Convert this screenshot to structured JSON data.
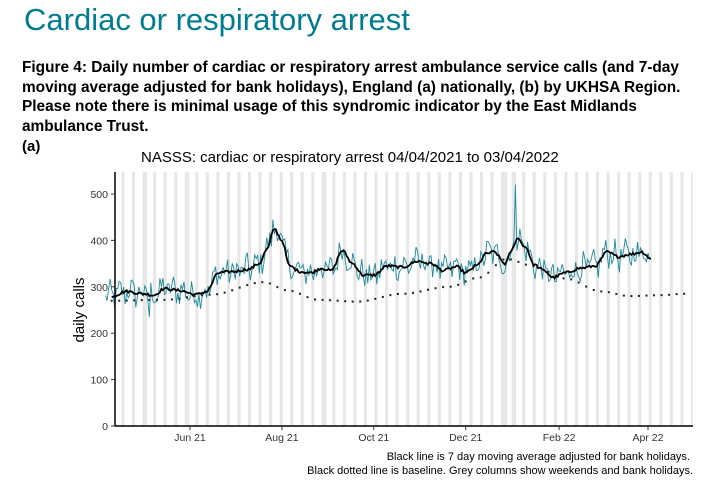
{
  "page": {
    "title": "Cardiac or respiratory arrest",
    "caption": "Figure 4: Daily number of cardiac or respiratory arrest ambulance service calls (and 7-day moving average adjusted for bank holidays), England (a) nationally, (b) by UKHSA Region. Please note there is minimal usage of this syndromic indicator by the East Midlands ambulance Trust.",
    "panel_label": "(a)"
  },
  "chart_data": {
    "type": "line",
    "title": "NASSS: cardiac or respiratory arrest 04/04/2021 to 03/04/2022",
    "xlabel": "",
    "ylabel": "daily calls",
    "ylim": [
      0,
      550
    ],
    "yticks": [
      0,
      100,
      200,
      300,
      400,
      500
    ],
    "xlim": [
      "2021-04-06",
      "2022-04-30"
    ],
    "xticks": [
      {
        "date": "2021-06-01",
        "label": "Jun 21"
      },
      {
        "date": "2021-08-01",
        "label": "Aug 21"
      },
      {
        "date": "2021-10-01",
        "label": "Oct 21"
      },
      {
        "date": "2021-12-01",
        "label": "Dec 21"
      },
      {
        "date": "2022-02-01",
        "label": "Feb 22"
      },
      {
        "date": "2022-04-01",
        "label": "Apr 22"
      }
    ],
    "grid": false,
    "weekend_shading": true,
    "bank_holidays": [
      "2021-05-03",
      "2021-05-31",
      "2021-08-30",
      "2021-12-27",
      "2021-12-28",
      "2022-01-03"
    ],
    "series": [
      {
        "name": "Daily calls",
        "style": "solid-thin",
        "color": "#1b8a9c",
        "start": "2021-04-06",
        "end": "2022-04-03",
        "approx_range": [
          235,
          520
        ],
        "peaks": [
          {
            "date": "2021-07-26",
            "value": 445
          },
          {
            "date": "2022-01-03",
            "value": 520
          }
        ],
        "trough": {
          "date": "2021-05-05",
          "value": 235
        }
      },
      {
        "name": "7 day moving average adjusted for bank holidays",
        "style": "solid-thick",
        "color": "#000000",
        "points": [
          [
            "2021-04-10",
            280
          ],
          [
            "2021-04-20",
            290
          ],
          [
            "2021-05-01",
            285
          ],
          [
            "2021-05-08",
            282
          ],
          [
            "2021-05-15",
            296
          ],
          [
            "2021-05-25",
            292
          ],
          [
            "2021-06-05",
            283
          ],
          [
            "2021-06-12",
            290
          ],
          [
            "2021-06-20",
            330
          ],
          [
            "2021-06-30",
            333
          ],
          [
            "2021-07-10",
            338
          ],
          [
            "2021-07-17",
            350
          ],
          [
            "2021-07-22",
            380
          ],
          [
            "2021-07-27",
            425
          ],
          [
            "2021-08-01",
            400
          ],
          [
            "2021-08-06",
            345
          ],
          [
            "2021-08-13",
            333
          ],
          [
            "2021-08-20",
            330
          ],
          [
            "2021-08-27",
            340
          ],
          [
            "2021-09-03",
            335
          ],
          [
            "2021-09-10",
            378
          ],
          [
            "2021-09-17",
            350
          ],
          [
            "2021-09-24",
            325
          ],
          [
            "2021-10-01",
            325
          ],
          [
            "2021-10-10",
            345
          ],
          [
            "2021-10-20",
            342
          ],
          [
            "2021-10-30",
            355
          ],
          [
            "2021-11-08",
            350
          ],
          [
            "2021-11-16",
            335
          ],
          [
            "2021-11-25",
            343
          ],
          [
            "2021-12-01",
            330
          ],
          [
            "2021-12-08",
            345
          ],
          [
            "2021-12-15",
            372
          ],
          [
            "2021-12-20",
            375
          ],
          [
            "2021-12-27",
            350
          ],
          [
            "2022-01-01",
            380
          ],
          [
            "2022-01-04",
            405
          ],
          [
            "2022-01-10",
            385
          ],
          [
            "2022-01-15",
            348
          ],
          [
            "2022-01-22",
            335
          ],
          [
            "2022-01-28",
            320
          ],
          [
            "2022-02-05",
            330
          ],
          [
            "2022-02-15",
            340
          ],
          [
            "2022-02-25",
            345
          ],
          [
            "2022-03-05",
            375
          ],
          [
            "2022-03-12",
            365
          ],
          [
            "2022-03-20",
            370
          ],
          [
            "2022-03-28",
            375
          ],
          [
            "2022-04-03",
            360
          ]
        ]
      },
      {
        "name": "Baseline",
        "style": "dotted",
        "color": "#000000",
        "points": [
          [
            "2021-04-10",
            270
          ],
          [
            "2021-05-15",
            272
          ],
          [
            "2021-06-15",
            283
          ],
          [
            "2021-07-20",
            310
          ],
          [
            "2021-08-05",
            292
          ],
          [
            "2021-08-25",
            272
          ],
          [
            "2021-09-20",
            268
          ],
          [
            "2021-10-20",
            285
          ],
          [
            "2021-11-20",
            300
          ],
          [
            "2021-12-10",
            320
          ],
          [
            "2021-12-28",
            360
          ],
          [
            "2022-01-15",
            345
          ],
          [
            "2022-02-05",
            318
          ],
          [
            "2022-03-01",
            290
          ],
          [
            "2022-03-20",
            280
          ],
          [
            "2022-04-10",
            282
          ],
          [
            "2022-04-25",
            285
          ]
        ]
      }
    ],
    "notes": [
      "Black line is 7 day moving average adjusted for bank holidays.",
      "Black dotted line is baseline. Grey columns show weekends and bank holidays."
    ]
  }
}
